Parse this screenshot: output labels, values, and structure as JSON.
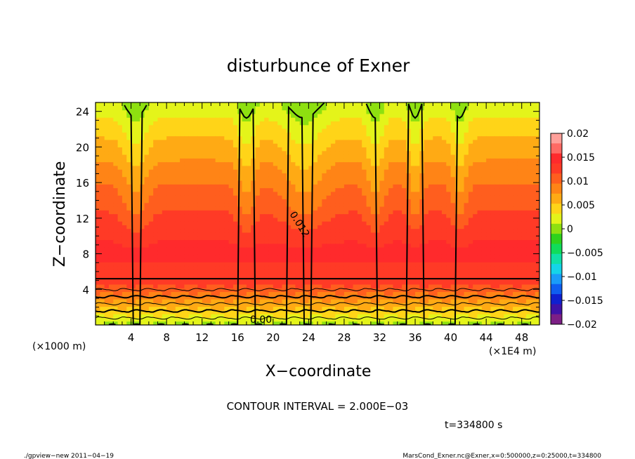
{
  "chart_data": {
    "type": "heatmap",
    "title": "disturbunce of Exner",
    "xlabel": "X−coordinate",
    "ylabel": "Z−coordinate",
    "x_unit_left": "(×1000 m)",
    "x_unit_right": "(×1E4 m)",
    "xlim": [
      0,
      50
    ],
    "ylim": [
      0,
      25
    ],
    "x_ticks": [
      4,
      8,
      12,
      16,
      20,
      24,
      28,
      32,
      36,
      40,
      44,
      48
    ],
    "y_ticks": [
      4,
      8,
      12,
      16,
      20,
      24
    ],
    "colorbar": {
      "ticks": [
        "0.02",
        "0.015",
        "0.01",
        "0.005",
        "0",
        "−0.005",
        "−0.01",
        "−0.015",
        "−0.02"
      ],
      "range": [
        -0.02,
        0.02
      ],
      "colors": [
        "#7d1f86",
        "#3f12a8",
        "#0f20d0",
        "#0f5ef0",
        "#1a9cf8",
        "#15d4e8",
        "#10e0a6",
        "#10dc5a",
        "#2ed21c",
        "#8ee010",
        "#e4f41a",
        "#ffd418",
        "#ffaa14",
        "#ff8416",
        "#ff5e1e",
        "#ff3a26",
        "#ff2a2c",
        "#ff6a64",
        "#ffa09a"
      ]
    },
    "contour_labels": [
      "0.012",
      "0.00"
    ],
    "contour_interval": "CONTOUR INTERVAL = 2.000E−03",
    "time": "t=334800 s"
  },
  "footer": {
    "left": "./gpview−new 2011−04−19",
    "right": "MarsCond_Exner.nc@Exner,x=0:500000,z=0:25000,t=334800"
  }
}
